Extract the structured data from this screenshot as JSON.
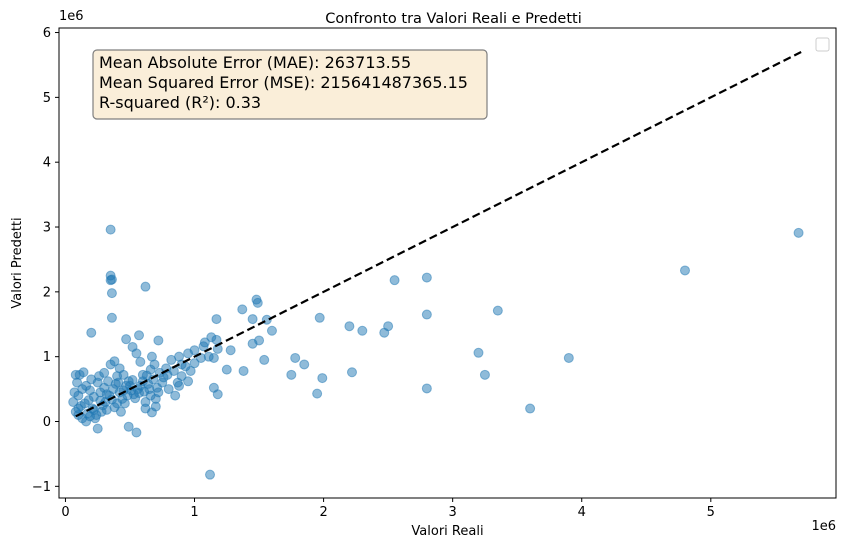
{
  "chart_data": {
    "type": "scatter",
    "title": "Confronto tra Valori Reali e Predetti",
    "xlabel": "Valori Reali",
    "ylabel": "Valori Predetti",
    "x_offset_label": "1e6",
    "y_offset_label": "1e6",
    "xlim": [
      -0.05,
      5.97
    ],
    "ylim": [
      -1.18,
      6.07
    ],
    "x_ticks": [
      0,
      1,
      2,
      3,
      4,
      5
    ],
    "y_ticks": [
      -1,
      0,
      1,
      2,
      3,
      4,
      5,
      6
    ],
    "x_tick_labels": [
      "0",
      "1",
      "2",
      "3",
      "4",
      "5"
    ],
    "y_tick_labels": [
      "−1",
      "0",
      "1",
      "2",
      "3",
      "4",
      "5",
      "6"
    ],
    "grid": false,
    "legend": "top-right, empty",
    "metrics": [
      "Mean Absolute Error (MAE): 263713.55",
      "Mean Squared Error (MSE): 215641487365.15",
      "R-squared (R²): 0.33"
    ],
    "ideal_line": {
      "x": [
        0.08,
        5.7
      ],
      "y": [
        0.08,
        5.7
      ],
      "style": "dashed",
      "color": "#000000"
    },
    "point_color": "#1f77b4",
    "points": [
      [
        0.35,
        2.96
      ],
      [
        0.35,
        2.25
      ],
      [
        0.35,
        2.18
      ],
      [
        0.36,
        2.19
      ],
      [
        0.62,
        2.08
      ],
      [
        0.36,
        1.98
      ],
      [
        0.36,
        1.6
      ],
      [
        0.2,
        1.37
      ],
      [
        0.57,
        1.33
      ],
      [
        0.47,
        1.27
      ],
      [
        0.72,
        1.25
      ],
      [
        0.52,
        1.15
      ],
      [
        0.67,
        1.0
      ],
      [
        0.42,
        0.82
      ],
      [
        5.68,
        2.91
      ],
      [
        4.8,
        2.33
      ],
      [
        2.8,
        2.22
      ],
      [
        2.55,
        2.18
      ],
      [
        1.48,
        1.88
      ],
      [
        1.49,
        1.83
      ],
      [
        1.37,
        1.73
      ],
      [
        1.56,
        1.57
      ],
      [
        1.45,
        1.58
      ],
      [
        1.97,
        1.6
      ],
      [
        1.6,
        1.4
      ],
      [
        2.2,
        1.47
      ],
      [
        2.3,
        1.4
      ],
      [
        2.5,
        1.47
      ],
      [
        2.47,
        1.37
      ],
      [
        3.35,
        1.71
      ],
      [
        2.8,
        1.65
      ],
      [
        1.17,
        1.58
      ],
      [
        1.13,
        1.3
      ],
      [
        1.17,
        1.26
      ],
      [
        1.5,
        1.25
      ],
      [
        1.45,
        1.2
      ],
      [
        1.28,
        1.1
      ],
      [
        1.18,
        1.12
      ],
      [
        1.07,
        1.16
      ],
      [
        1.11,
        1.0
      ],
      [
        3.2,
        1.06
      ],
      [
        3.9,
        0.98
      ],
      [
        1.54,
        0.95
      ],
      [
        1.78,
        0.98
      ],
      [
        1.85,
        0.88
      ],
      [
        1.75,
        0.72
      ],
      [
        1.99,
        0.67
      ],
      [
        2.22,
        0.76
      ],
      [
        3.25,
        0.72
      ],
      [
        1.95,
        0.43
      ],
      [
        2.8,
        0.51
      ],
      [
        3.6,
        0.2
      ],
      [
        1.15,
        0.52
      ],
      [
        1.18,
        0.42
      ],
      [
        1.12,
        -0.82
      ],
      [
        0.55,
        -0.17
      ],
      [
        0.49,
        -0.08
      ],
      [
        0.25,
        -0.11
      ],
      [
        0.67,
        0.14
      ],
      [
        0.62,
        0.2
      ],
      [
        0.7,
        0.23
      ],
      [
        0.85,
        0.4
      ],
      [
        0.87,
        0.6
      ],
      [
        0.9,
        0.7
      ],
      [
        1.0,
        0.9
      ],
      [
        1.05,
        0.98
      ],
      [
        0.95,
        1.05
      ],
      [
        1.25,
        0.8
      ],
      [
        1.38,
        0.78
      ],
      [
        0.8,
        0.5
      ],
      [
        0.75,
        0.6
      ],
      [
        0.65,
        0.5
      ],
      [
        0.58,
        0.55
      ],
      [
        0.52,
        0.64
      ],
      [
        0.45,
        0.72
      ],
      [
        0.4,
        0.7
      ],
      [
        0.33,
        0.62
      ],
      [
        0.3,
        0.52
      ],
      [
        0.27,
        0.45
      ],
      [
        0.22,
        0.38
      ],
      [
        0.18,
        0.33
      ],
      [
        0.15,
        0.28
      ],
      [
        0.12,
        0.24
      ],
      [
        0.1,
        0.2
      ],
      [
        0.08,
        0.15
      ],
      [
        0.06,
        0.3
      ],
      [
        0.07,
        0.45
      ],
      [
        0.09,
        0.6
      ],
      [
        0.11,
        0.72
      ],
      [
        0.14,
        0.76
      ],
      [
        0.16,
        0.55
      ],
      [
        0.19,
        0.48
      ],
      [
        0.21,
        0.2
      ],
      [
        0.24,
        0.1
      ],
      [
        0.28,
        0.15
      ],
      [
        0.31,
        0.3
      ],
      [
        0.34,
        0.4
      ],
      [
        0.37,
        0.5
      ],
      [
        0.39,
        0.58
      ],
      [
        0.42,
        0.45
      ],
      [
        0.44,
        0.35
      ],
      [
        0.46,
        0.28
      ],
      [
        0.48,
        0.4
      ],
      [
        0.5,
        0.55
      ],
      [
        0.53,
        0.42
      ],
      [
        0.56,
        0.5
      ],
      [
        0.6,
        0.62
      ],
      [
        0.63,
        0.71
      ],
      [
        0.66,
        0.8
      ],
      [
        0.69,
        0.88
      ],
      [
        0.73,
        0.75
      ],
      [
        0.78,
        0.82
      ],
      [
        0.82,
        0.95
      ],
      [
        0.88,
        1.0
      ],
      [
        0.93,
        0.85
      ],
      [
        0.97,
        0.78
      ],
      [
        0.58,
        0.92
      ],
      [
        0.55,
        1.05
      ],
      [
        0.62,
        0.3
      ],
      [
        0.7,
        0.35
      ],
      [
        0.25,
        0.6
      ],
      [
        0.2,
        0.65
      ],
      [
        0.13,
        0.5
      ],
      [
        0.1,
        0.4
      ],
      [
        0.17,
        0.12
      ],
      [
        0.23,
        0.05
      ],
      [
        0.29,
        0.25
      ],
      [
        0.32,
        0.18
      ],
      [
        0.38,
        0.22
      ],
      [
        0.43,
        0.15
      ],
      [
        0.47,
        0.55
      ],
      [
        0.51,
        0.48
      ],
      [
        0.54,
        0.36
      ],
      [
        0.57,
        0.44
      ],
      [
        0.61,
        0.46
      ],
      [
        0.64,
        0.58
      ],
      [
        0.68,
        0.65
      ],
      [
        0.71,
        0.52
      ],
      [
        0.76,
        0.68
      ],
      [
        0.79,
        0.72
      ],
      [
        0.84,
        0.78
      ],
      [
        0.9,
        0.88
      ],
      [
        0.35,
        0.88
      ],
      [
        0.38,
        0.93
      ],
      [
        0.41,
        0.6
      ],
      [
        0.26,
        0.7
      ],
      [
        0.3,
        0.75
      ],
      [
        0.08,
        0.72
      ],
      [
        0.1,
        0.1
      ],
      [
        0.13,
        0.05
      ],
      [
        0.16,
        0.0
      ],
      [
        0.19,
        0.08
      ],
      [
        0.22,
        0.18
      ],
      [
        0.27,
        0.32
      ],
      [
        0.32,
        0.42
      ],
      [
        0.36,
        0.34
      ],
      [
        0.4,
        0.28
      ],
      [
        0.45,
        0.48
      ],
      [
        0.49,
        0.62
      ],
      [
        0.6,
        0.72
      ],
      [
        0.66,
        0.4
      ],
      [
        0.72,
        0.45
      ],
      [
        1.0,
        1.1
      ],
      [
        1.08,
        1.22
      ],
      [
        1.15,
        0.98
      ],
      [
        0.95,
        0.62
      ],
      [
        0.88,
        0.55
      ]
    ]
  }
}
